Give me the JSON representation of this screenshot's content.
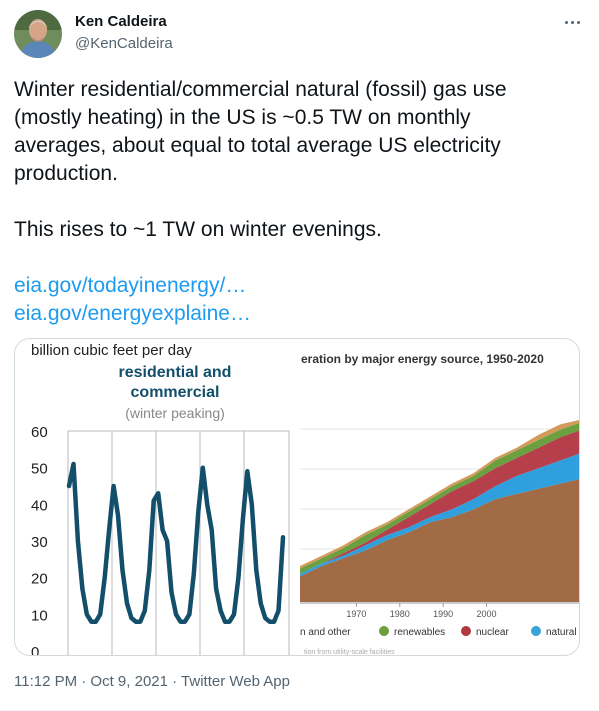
{
  "author": {
    "name": "Ken Caldeira",
    "handle": "@KenCaldeira"
  },
  "tweet": {
    "text_lines": [
      "Winter residential/commercial natural (fossil) gas use",
      "(mostly heating) in the US is ~0.5 TW on monthly",
      "averages, about equal to total average US electricity",
      "production."
    ],
    "text_line2": "This rises to ~1 TW on winter evenings.",
    "link1": "eia.gov/todayinenergy/…",
    "link2": "eia.gov/energyexplaine…",
    "timestamp": "11:12 PM · Oct 9, 2021 · Twitter Web App"
  },
  "chart_data": [
    {
      "type": "line",
      "title": "residential and commercial",
      "subtitle": "(winter peaking)",
      "ylabel": "billion cubic feet per day",
      "yticks": [
        "60",
        "50",
        "40",
        "30",
        "20",
        "10",
        "0"
      ],
      "ylim": [
        0,
        60
      ],
      "grid": true,
      "color": "#134f6b",
      "series": [
        {
          "values": [
            45,
            51,
            30,
            17,
            10,
            8,
            8,
            10,
            20,
            33,
            45,
            37,
            22,
            13,
            9,
            8,
            8,
            11,
            22,
            41,
            43,
            33,
            30,
            16,
            10,
            8,
            8,
            10,
            21,
            38,
            50,
            40,
            33,
            17,
            11,
            8,
            8,
            10,
            20,
            36,
            49,
            40,
            22,
            13,
            9,
            8,
            8,
            11,
            31
          ]
        }
      ]
    },
    {
      "type": "area",
      "title": "eration by major energy source, 1950-2020",
      "x": [
        1955,
        1960,
        1965,
        1970,
        1975,
        1980,
        1985,
        1990,
        1995,
        2000,
        2005
      ],
      "xticks": [
        "1970",
        "1980",
        "1990",
        "2000"
      ],
      "legend": [
        "n and other",
        "renewables",
        "nuclear",
        "natural ga"
      ],
      "legend_colors": [
        "#9a6a45",
        "#6a9f3b",
        "#b0393f",
        "#3aa3d9"
      ],
      "colors": {
        "coal_petroleum": "#a06b45",
        "natural_gas": "#2f9fde",
        "nuclear": "#b5404c",
        "renewables": "#6aa040",
        "other": "#d49a5a"
      },
      "footnote": "tion from utility-scale facilities"
    }
  ]
}
